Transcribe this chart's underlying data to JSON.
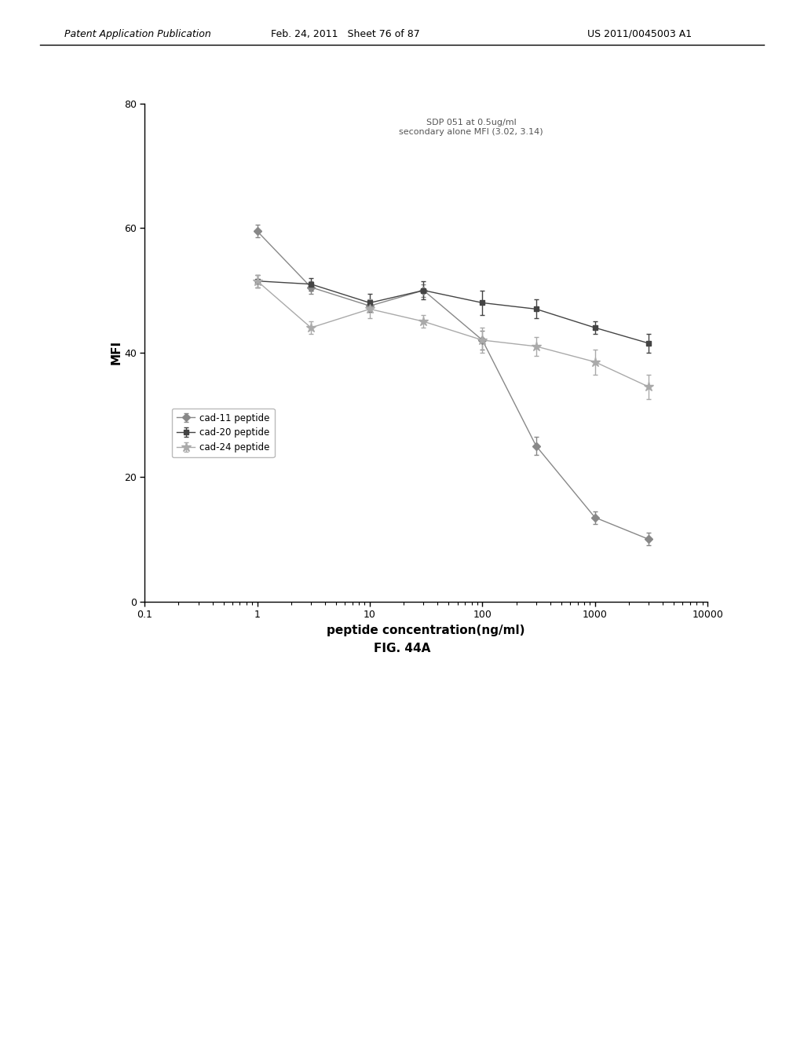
{
  "title_annotation": "SDP 051 at 0.5ug/ml\nsecondary alone MFI (3.02, 3.14)",
  "xlabel": "peptide concentration(ng/ml)",
  "ylabel": "MFI",
  "fig_label": "FIG. 44A",
  "header_left": "Patent Application Publication",
  "header_mid": "Feb. 24, 2011   Sheet 76 of 87",
  "header_right": "US 2011/0045003 A1",
  "xlim": [
    0.1,
    10000
  ],
  "ylim": [
    0,
    80
  ],
  "yticks": [
    0,
    20,
    40,
    60,
    80
  ],
  "series": [
    {
      "label": "cad-11 peptide",
      "color": "#888888",
      "marker": "D",
      "x": [
        1,
        3,
        10,
        30,
        100,
        300,
        1000,
        3000
      ],
      "y": [
        59.5,
        50.5,
        47.5,
        50.0,
        42.0,
        25.0,
        13.5,
        10.0
      ],
      "yerr": [
        1.0,
        1.0,
        1.0,
        1.0,
        1.5,
        1.5,
        1.0,
        1.0
      ]
    },
    {
      "label": "cad-20 peptide",
      "color": "#444444",
      "marker": "s",
      "x": [
        1,
        3,
        10,
        30,
        100,
        300,
        1000,
        3000
      ],
      "y": [
        51.5,
        51.0,
        48.0,
        50.0,
        48.0,
        47.0,
        44.0,
        41.5
      ],
      "yerr": [
        1.0,
        1.0,
        1.5,
        1.5,
        2.0,
        1.5,
        1.0,
        1.5
      ]
    },
    {
      "label": "cad-24 peptide",
      "color": "#aaaaaa",
      "marker": "*",
      "x": [
        1,
        3,
        10,
        30,
        100,
        300,
        1000,
        3000
      ],
      "y": [
        51.5,
        44.0,
        47.0,
        45.0,
        42.0,
        41.0,
        38.5,
        34.5
      ],
      "yerr": [
        1.0,
        1.0,
        1.5,
        1.0,
        2.0,
        1.5,
        2.0,
        2.0
      ]
    }
  ]
}
